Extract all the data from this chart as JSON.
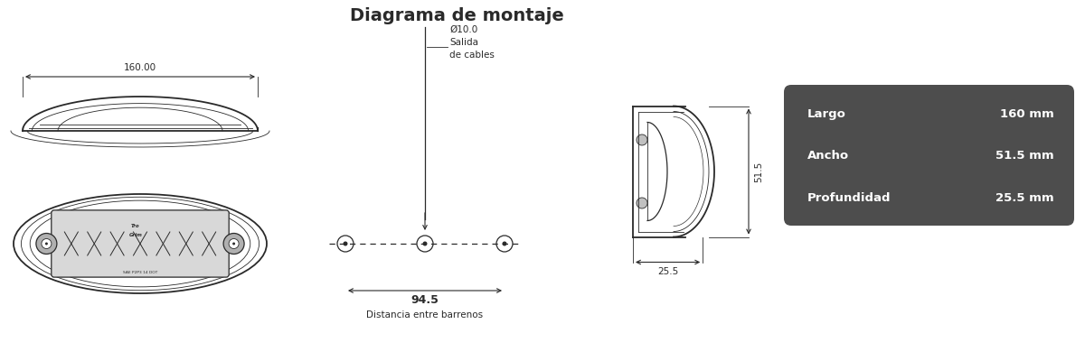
{
  "title": "Diagrama de montaje",
  "bg_color": "#ffffff",
  "line_color": "#2a2a2a",
  "title_fontsize": 13,
  "dim_fontsize": 7.5,
  "specs": [
    {
      "label": "Largo",
      "value": "160 mm"
    },
    {
      "label": "Ancho",
      "value": "51.5 mm"
    },
    {
      "label": "Profundidad",
      "value": "25.5 mm"
    }
  ],
  "specs_bg": "#4d4d4d",
  "specs_text_color": "#ffffff",
  "dim_160": "160.00",
  "dim_94_5": "94.5",
  "dim_51_5": "51.5",
  "dim_25_5": "25.5",
  "cable_text1": "Ø10.0",
  "cable_text2": "Salida",
  "cable_text3": "de cables",
  "distance_label": "Distancia entre barrenos"
}
